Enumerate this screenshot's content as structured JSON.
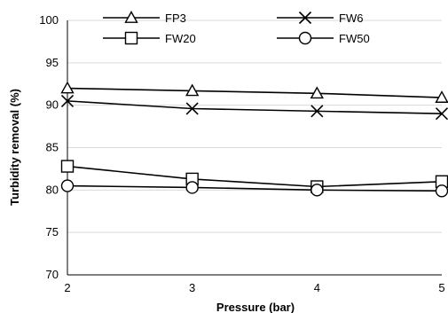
{
  "chart_data": {
    "type": "line",
    "xlabel": "Pressure (bar)",
    "ylabel": "Turbidity removal (%)",
    "x": [
      2,
      3,
      4,
      5
    ],
    "xlim": [
      2,
      5
    ],
    "ylim": [
      70,
      100
    ],
    "x_ticks": [
      "2",
      "3",
      "4",
      "5"
    ],
    "y_ticks": [
      "70",
      "75",
      "80",
      "85",
      "90",
      "95",
      "100"
    ],
    "grid": "horizontal",
    "legend_position": "top",
    "series": [
      {
        "name": "FP3",
        "marker": "triangle",
        "values": [
          92.0,
          91.7,
          91.4,
          90.9
        ]
      },
      {
        "name": "FW6",
        "marker": "x",
        "values": [
          90.5,
          89.6,
          89.3,
          89.0
        ]
      },
      {
        "name": "FW20",
        "marker": "square",
        "values": [
          82.8,
          81.3,
          80.4,
          81.0
        ]
      },
      {
        "name": "FW50",
        "marker": "circle",
        "values": [
          80.5,
          80.3,
          80.0,
          79.9
        ]
      }
    ]
  }
}
